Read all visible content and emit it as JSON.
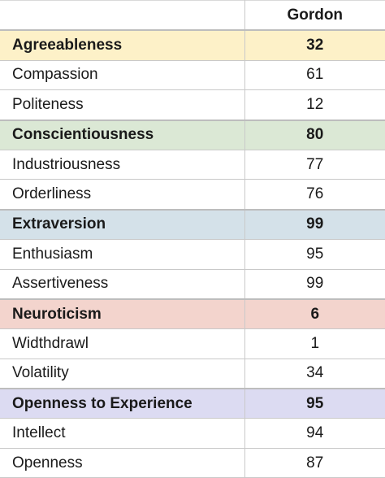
{
  "header": {
    "corner": "",
    "column": "Gordon"
  },
  "traits": [
    {
      "name": "Agreeableness",
      "score": "32",
      "color": "#fdf1c8",
      "facets": [
        {
          "name": "Compassion",
          "score": "61"
        },
        {
          "name": "Politeness",
          "score": "12"
        }
      ]
    },
    {
      "name": "Conscientiousness",
      "score": "80",
      "color": "#dbe8d5",
      "facets": [
        {
          "name": "Industriousness",
          "score": "77"
        },
        {
          "name": "Orderliness",
          "score": "76"
        }
      ]
    },
    {
      "name": "Extraversion",
      "score": "99",
      "color": "#d4e1e9",
      "facets": [
        {
          "name": "Enthusiasm",
          "score": "95"
        },
        {
          "name": "Assertiveness",
          "score": "99"
        }
      ]
    },
    {
      "name": "Neuroticism",
      "score": "6",
      "color": "#f3d4cd",
      "facets": [
        {
          "name": "Widthdrawl",
          "score": "1"
        },
        {
          "name": "Volatility",
          "score": "34"
        }
      ]
    },
    {
      "name": "Openness to Experience",
      "score": "95",
      "color": "#dcdbf2",
      "facets": [
        {
          "name": "Intellect",
          "score": "94"
        },
        {
          "name": "Openness",
          "score": "87"
        }
      ]
    }
  ]
}
